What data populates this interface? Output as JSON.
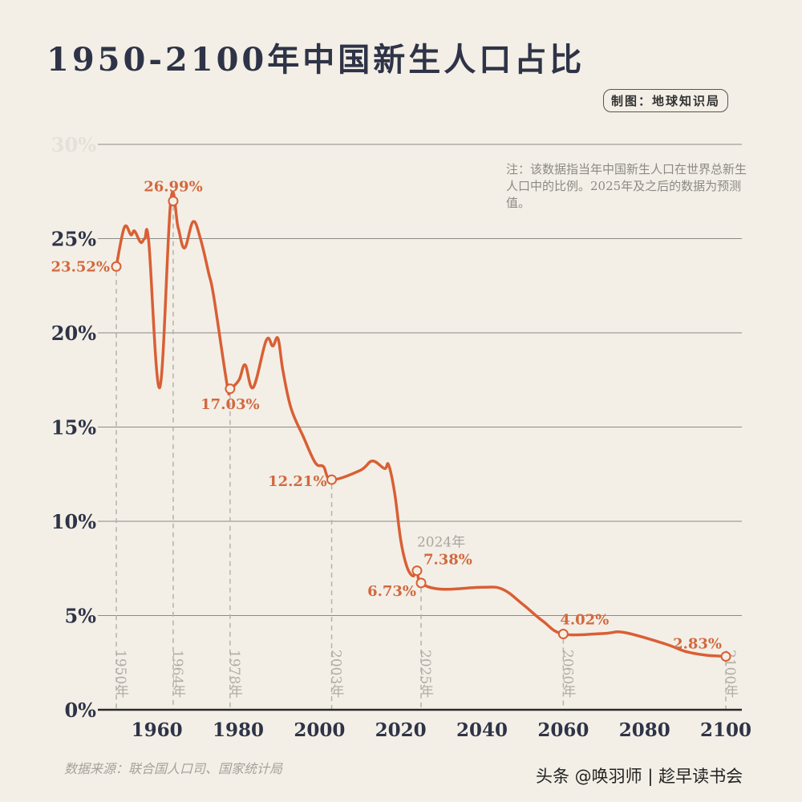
{
  "title": "1950-2100年中国新生人口占比",
  "credit": "制图：地球知识局",
  "note": "注：该数据指当年中国新生人口在世界总新生人口中的比例。2025年及之后的数据为预测值。",
  "source": "数据来源：联合国人口司、国家统计局",
  "watermark": "头条 @唤羽师 | 趁早读书会",
  "colors": {
    "line": "#d95f35",
    "axis_text": "#2e3347",
    "annotation": "#d2683f",
    "grid": "#8a8a86",
    "background": "#f3efe6"
  },
  "chart_data": {
    "type": "line",
    "title": "1950-2100年中国新生人口占比",
    "xlabel": "",
    "ylabel": "",
    "xlim": [
      1950,
      2100
    ],
    "ylim": [
      0,
      30
    ],
    "grid": true,
    "x_ticks": [
      "1960",
      "1980",
      "2000",
      "2020",
      "2040",
      "2060",
      "2080",
      "2100"
    ],
    "x_tick_values": [
      1960,
      1980,
      2000,
      2020,
      2040,
      2060,
      2080,
      2100
    ],
    "y_ticks": [
      "0%",
      "5%",
      "10%",
      "15%",
      "20%",
      "25%",
      "30%"
    ],
    "y_tick_values": [
      0,
      5,
      10,
      15,
      20,
      25,
      30
    ],
    "series": [
      {
        "x": [
          1950,
          1952,
          1953.6,
          1954.5,
          1956,
          1957,
          1958,
          1960.7,
          1963.4,
          1965.2,
          1966.8,
          1968.9,
          1970.7,
          1972.7,
          1974,
          1977.3,
          1978,
          1980.2,
          1981.7,
          1983.7,
          1986.9,
          1988.5,
          1989.8,
          1991,
          1993,
          1996,
          1999,
          2001,
          2003,
          2010,
          2013,
          2016,
          2017,
          2018.5,
          2020,
          2021.5,
          2023,
          2024,
          2025,
          2030,
          2040,
          2045,
          2050,
          2055,
          2060,
          2070,
          2075,
          2085,
          2090,
          2095,
          2100
        ],
        "y": [
          23.52,
          25.6,
          25.2,
          25.4,
          24.8,
          25.0,
          24.8,
          17.1,
          26.99,
          25.6,
          24.5,
          25.9,
          25.0,
          23.2,
          21.9,
          17.2,
          17.03,
          17.5,
          18.3,
          17.1,
          19.6,
          19.3,
          19.7,
          18.0,
          16.0,
          14.5,
          13.1,
          12.9,
          12.21,
          12.7,
          13.2,
          12.8,
          13.0,
          11.5,
          9.0,
          7.6,
          7.1,
          7.38,
          6.73,
          6.4,
          6.5,
          6.4,
          5.6,
          4.7,
          4.02,
          4.05,
          4.1,
          3.5,
          3.1,
          2.9,
          2.83
        ]
      }
    ],
    "annotations": [
      {
        "year": 1950,
        "value": 23.52,
        "label": "23.52%",
        "year_label": "1950年"
      },
      {
        "year": 1964,
        "value": 26.99,
        "label": "26.99%",
        "year_label": "1964年"
      },
      {
        "year": 1978,
        "value": 17.03,
        "label": "17.03%",
        "year_label": "1978年"
      },
      {
        "year": 2003,
        "value": 12.21,
        "label": "12.21%",
        "year_label": "2003年"
      },
      {
        "year": 2024,
        "value": 7.38,
        "label": "7.38%",
        "year_label": "2024年"
      },
      {
        "year": 2025,
        "value": 6.73,
        "label": "6.73%",
        "year_label": "2025年"
      },
      {
        "year": 2060,
        "value": 4.02,
        "label": "4.02%",
        "year_label": "2060年"
      },
      {
        "year": 2100,
        "value": 2.83,
        "label": "2.83%",
        "year_label": "2100年"
      }
    ]
  }
}
